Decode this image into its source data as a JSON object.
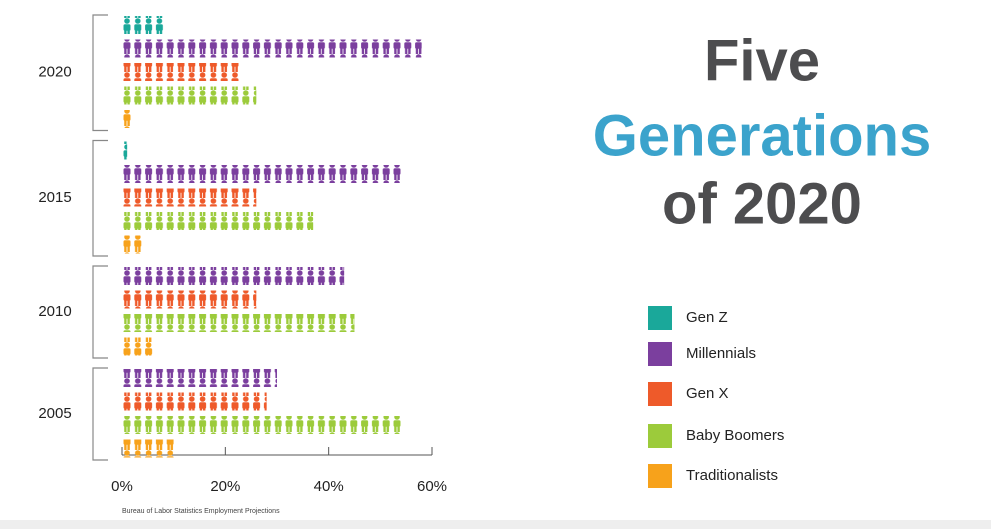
{
  "chart_data": {
    "type": "pictograph",
    "title_lines": [
      "Five",
      "Generations",
      "of 2020"
    ],
    "source": "Bureau of Labor Statistics Employment Projections",
    "categories": [
      "2020",
      "2015",
      "2010",
      "2005"
    ],
    "series": [
      {
        "name": "Gen Z",
        "color": "#1aa89a",
        "values": [
          8,
          1,
          0,
          0
        ]
      },
      {
        "name": "Millennials",
        "color": "#7b3f9e",
        "values": [
          58,
          54,
          43,
          30
        ]
      },
      {
        "name": "Gen X",
        "color": "#ee5a2a",
        "values": [
          23,
          26,
          26,
          28
        ]
      },
      {
        "name": "Baby Boomers",
        "color": "#9ccb3b",
        "values": [
          26,
          37,
          45,
          54
        ]
      },
      {
        "name": "Traditionalists",
        "color": "#f7a21b",
        "values": [
          2,
          4,
          6,
          10
        ]
      }
    ],
    "xlim": [
      0,
      60
    ],
    "xticks": [
      {
        "value": 0,
        "label": "0%"
      },
      {
        "value": 20,
        "label": "20%"
      },
      {
        "value": 40,
        "label": "40%"
      },
      {
        "value": 60,
        "label": "60%"
      }
    ]
  }
}
